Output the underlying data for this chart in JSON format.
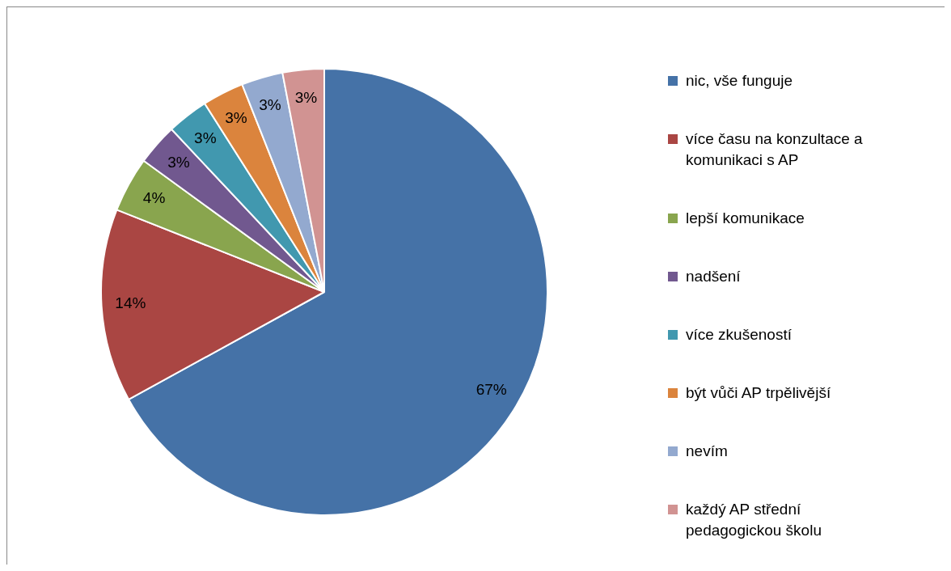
{
  "chart_data": {
    "type": "pie",
    "categories": [
      "nic, vše funguje",
      "více času na konzultace a komunikaci s AP",
      "lepší komunikace",
      "nadšení",
      "více zkušeností",
      "být vůči AP trpělivější",
      "nevím",
      "každý AP střední pedagogickou školu"
    ],
    "values": [
      67,
      14,
      4,
      3,
      3,
      3,
      3,
      3
    ],
    "value_labels": [
      "67%",
      "14%",
      "4%",
      "3%",
      "3%",
      "3%",
      "3%",
      "3%"
    ],
    "colors": [
      "#4572a7",
      "#aa4643",
      "#89a54e",
      "#71588f",
      "#4198af",
      "#db843d",
      "#93a9cf",
      "#d19392"
    ],
    "legend": "right"
  }
}
